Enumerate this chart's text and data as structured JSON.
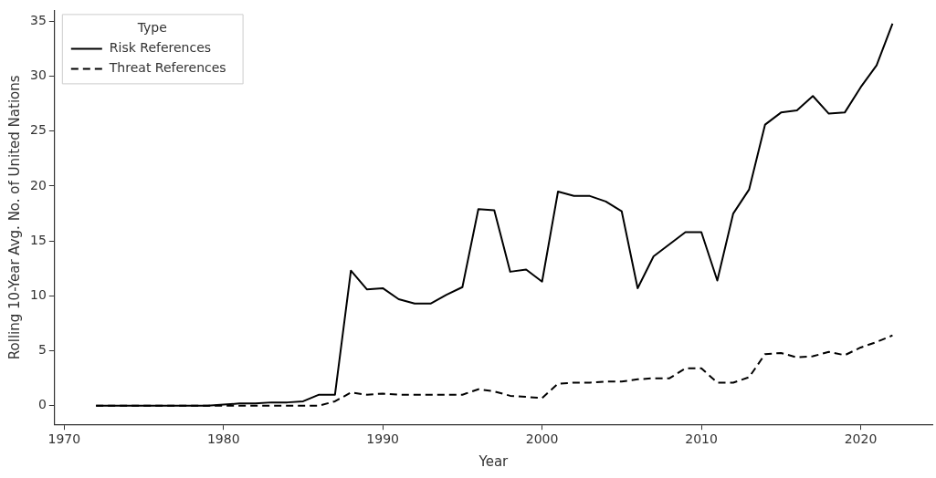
{
  "chart_data": {
    "type": "line",
    "xlabel": "Year",
    "ylabel": "Rolling 10-Year Avg. No. of United Nations",
    "legend_title": "Type",
    "legend": "top left",
    "grid": false,
    "marker": "none",
    "x": [
      1972,
      1973,
      1974,
      1975,
      1976,
      1977,
      1978,
      1979,
      1980,
      1981,
      1982,
      1983,
      1984,
      1985,
      1986,
      1987,
      1988,
      1989,
      1990,
      1991,
      1992,
      1993,
      1994,
      1995,
      1996,
      1997,
      1998,
      1999,
      2000,
      2001,
      2002,
      2003,
      2004,
      2005,
      2006,
      2007,
      2008,
      2009,
      2010,
      2011,
      2012,
      2013,
      2014,
      2015,
      2016,
      2017,
      2018,
      2019,
      2020,
      2021,
      2022
    ],
    "xlim": [
      1969.4,
      2024.5
    ],
    "xticks": [
      1970,
      1980,
      1990,
      2000,
      2010,
      2020
    ],
    "ylim": [
      -1.7,
      36
    ],
    "yticks": [
      0,
      5,
      10,
      15,
      20,
      25,
      30,
      35
    ],
    "series": [
      {
        "name": "Risk References",
        "color": "#000000",
        "line_style": "solid",
        "values": [
          0,
          0,
          0,
          0,
          0,
          0,
          0,
          0,
          0.1,
          0.2,
          0.2,
          0.3,
          0.3,
          0.4,
          1.0,
          1.0,
          12.3,
          10.6,
          10.7,
          9.7,
          9.3,
          9.3,
          10.1,
          10.8,
          17.9,
          17.8,
          12.2,
          12.4,
          11.3,
          19.5,
          19.1,
          19.1,
          18.6,
          17.7,
          10.7,
          13.6,
          14.7,
          15.8,
          15.8,
          11.4,
          17.5,
          19.7,
          25.6,
          26.7,
          26.9,
          28.2,
          26.6,
          26.7,
          29.0,
          31.0,
          34.8
        ]
      },
      {
        "name": "Threat References",
        "color": "#000000",
        "line_style": "dashed",
        "values": [
          0,
          0,
          0,
          0,
          0,
          0,
          0,
          0,
          0,
          0,
          0,
          0,
          0,
          0,
          0,
          0.4,
          1.2,
          1.0,
          1.1,
          1.0,
          1.0,
          1.0,
          1.0,
          1.0,
          1.5,
          1.3,
          0.9,
          0.8,
          0.7,
          2.0,
          2.1,
          2.1,
          2.2,
          2.2,
          2.4,
          2.5,
          2.5,
          3.4,
          3.4,
          2.1,
          2.1,
          2.6,
          4.7,
          4.8,
          4.4,
          4.5,
          4.9,
          4.6,
          5.3,
          5.8,
          6.4
        ]
      }
    ]
  }
}
